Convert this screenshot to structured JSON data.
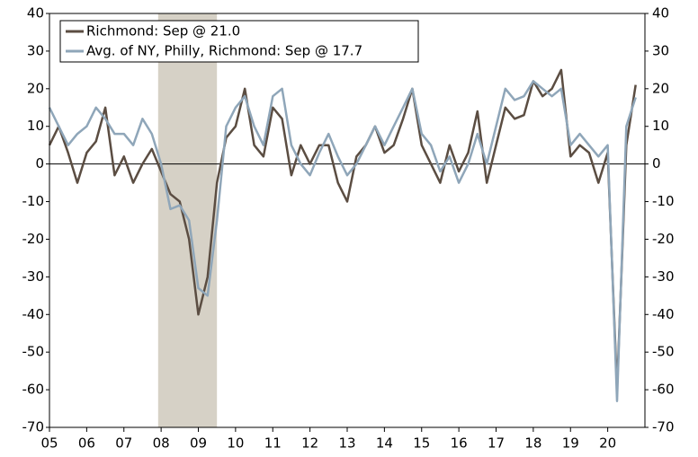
{
  "chart_data": {
    "type": "line",
    "x": [
      2005,
      2005.25,
      2005.5,
      2005.75,
      2006,
      2006.25,
      2006.5,
      2006.75,
      2007,
      2007.25,
      2007.5,
      2007.75,
      2008,
      2008.25,
      2008.5,
      2008.75,
      2009,
      2009.25,
      2009.5,
      2009.75,
      2010,
      2010.25,
      2010.5,
      2010.75,
      2011,
      2011.25,
      2011.5,
      2011.75,
      2012,
      2012.25,
      2012.5,
      2012.75,
      2013,
      2013.25,
      2013.5,
      2013.75,
      2014,
      2014.25,
      2014.5,
      2014.75,
      2015,
      2015.25,
      2015.5,
      2015.75,
      2016,
      2016.25,
      2016.5,
      2016.75,
      2017,
      2017.25,
      2017.5,
      2017.75,
      2018,
      2018.25,
      2018.5,
      2018.75,
      2019,
      2019.25,
      2019.5,
      2019.75,
      2020,
      2020.25,
      2020.5,
      2020.75
    ],
    "series": [
      {
        "name": "Richmond: Sep @ 21.0",
        "color": "#5b4d42",
        "values": [
          5,
          10,
          3,
          -5,
          3,
          6,
          15,
          -3,
          2,
          -5,
          0,
          4,
          -2,
          -8,
          -10,
          -20,
          -40,
          -30,
          -5,
          7,
          10,
          20,
          5,
          2,
          15,
          12,
          -3,
          5,
          0,
          5,
          5,
          -5,
          -10,
          2,
          5,
          10,
          3,
          5,
          12,
          20,
          5,
          0,
          -5,
          5,
          -2,
          3,
          14,
          -5,
          5,
          15,
          12,
          13,
          22,
          18,
          20,
          25,
          2,
          5,
          3,
          -5,
          3,
          -60,
          5,
          21
        ]
      },
      {
        "name": "Avg. of NY, Philly, Richmond: Sep @ 17.7",
        "color": "#8fa6b9",
        "values": [
          15,
          10,
          5,
          8,
          10,
          15,
          12,
          8,
          8,
          5,
          12,
          8,
          0,
          -12,
          -11,
          -15,
          -33,
          -35,
          -15,
          10,
          15,
          18,
          10,
          5,
          18,
          20,
          5,
          0,
          -3,
          3,
          8,
          2,
          -3,
          0,
          5,
          10,
          5,
          10,
          15,
          20,
          8,
          5,
          -2,
          2,
          -5,
          0,
          8,
          0,
          10,
          20,
          17,
          18,
          22,
          20,
          18,
          20,
          5,
          8,
          5,
          2,
          5,
          -63,
          10,
          17.7
        ]
      }
    ],
    "xlim": [
      2005,
      2021
    ],
    "xticks": [
      {
        "value": 2005,
        "label": "05"
      },
      {
        "value": 2006,
        "label": "06"
      },
      {
        "value": 2007,
        "label": "07"
      },
      {
        "value": 2008,
        "label": "08"
      },
      {
        "value": 2009,
        "label": "09"
      },
      {
        "value": 2010,
        "label": "10"
      },
      {
        "value": 2011,
        "label": "11"
      },
      {
        "value": 2012,
        "label": "12"
      },
      {
        "value": 2013,
        "label": "13"
      },
      {
        "value": 2014,
        "label": "14"
      },
      {
        "value": 2015,
        "label": "15"
      },
      {
        "value": 2016,
        "label": "16"
      },
      {
        "value": 2017,
        "label": "17"
      },
      {
        "value": 2018,
        "label": "18"
      },
      {
        "value": 2019,
        "label": "19"
      },
      {
        "value": 2020,
        "label": "20"
      }
    ],
    "ylim": [
      -70,
      40
    ],
    "yticks": [
      -70,
      -60,
      -50,
      -40,
      -30,
      -20,
      -10,
      0,
      10,
      20,
      30,
      40
    ],
    "shade": [
      2007.92,
      2009.5
    ],
    "shade_color": "#d6d1c6",
    "legend": "upper left"
  }
}
